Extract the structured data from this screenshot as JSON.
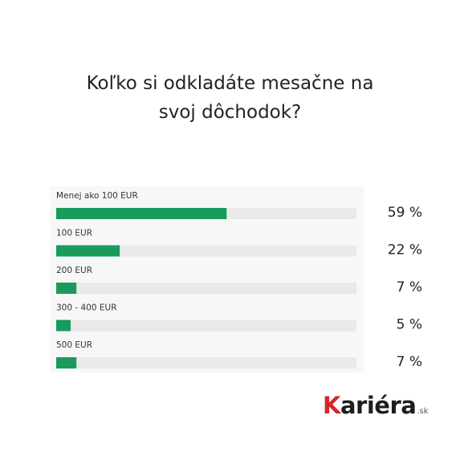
{
  "chart_data": {
    "type": "bar",
    "orientation": "horizontal",
    "title_lines": [
      "Koľko si odkladáte mesačne na",
      "svoj dôchodok?"
    ],
    "categories": [
      "Menej ako 100 EUR",
      "100 EUR",
      "200 EUR",
      "300 - 400 EUR",
      "500 EUR"
    ],
    "values": [
      59,
      22,
      7,
      5,
      7
    ],
    "value_labels": [
      "59 %",
      "22 %",
      "7 %",
      "5 %",
      "7 %"
    ],
    "xlim": [
      0,
      100
    ],
    "bar_color": "#1a9a5b",
    "track_color": "#e9e9e9",
    "legend": "none",
    "grid": false
  },
  "brand": {
    "logo_k": "K",
    "logo_rest": "ariéra",
    "logo_suffix": ".sk",
    "logo_accent": "#d6242a"
  }
}
